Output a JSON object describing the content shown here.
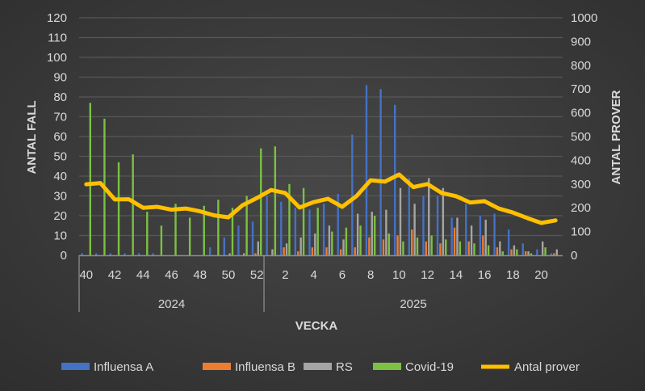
{
  "chart_data": {
    "type": "bar+line",
    "xlabel": "VECKA",
    "ylabel": "ANTAL FALL",
    "y2label": "ANTAL PROVER",
    "ylim": [
      0,
      120
    ],
    "y2lim": [
      0,
      1000
    ],
    "yticks": [
      "0",
      "10",
      "20",
      "30",
      "40",
      "50",
      "60",
      "70",
      "80",
      "90",
      "100",
      "110",
      "120"
    ],
    "y2ticks": [
      "0",
      "100",
      "200",
      "300",
      "400",
      "500",
      "600",
      "700",
      "800",
      "900",
      "1000"
    ],
    "grid": true,
    "legend": "bottom",
    "groups": [
      {
        "label": "2024",
        "weeks": [
          40,
          41,
          42,
          43,
          44,
          45,
          46,
          47,
          48,
          49,
          50,
          51,
          52
        ]
      },
      {
        "label": "2025",
        "weeks": [
          1,
          2,
          3,
          4,
          5,
          6,
          7,
          8,
          9,
          10,
          11,
          12,
          13,
          14,
          15,
          16,
          17,
          18,
          19,
          20,
          21
        ]
      }
    ],
    "xtick_labels": [
      "40",
      "42",
      "44",
      "46",
      "48",
      "50",
      "52",
      "2",
      "4",
      "6",
      "8",
      "10",
      "12",
      "14",
      "16",
      "18",
      "20"
    ],
    "series": [
      {
        "name": "Influensa A",
        "kind": "bar",
        "axis": "left",
        "color": "#4472C4",
        "values": [
          1,
          1,
          1,
          1,
          1,
          1,
          0,
          0,
          0,
          4,
          9,
          15,
          17,
          30,
          27,
          24,
          23,
          26,
          31,
          61,
          86,
          84,
          76,
          39,
          30,
          30,
          19,
          26,
          20,
          21,
          13,
          6,
          3,
          1
        ]
      },
      {
        "name": "Influensa B",
        "kind": "bar",
        "axis": "left",
        "color": "#ED7D31",
        "values": [
          0,
          0,
          0,
          0,
          0,
          0,
          0,
          0,
          0,
          0,
          0,
          0,
          1,
          0,
          4,
          2,
          4,
          4,
          3,
          4,
          9,
          8,
          10,
          13,
          7,
          6,
          14,
          7,
          10,
          4,
          3,
          2,
          0,
          1
        ]
      },
      {
        "name": "RS",
        "kind": "bar",
        "axis": "left",
        "color": "#A5A5A5",
        "values": [
          0,
          0,
          0,
          0,
          0,
          0,
          0,
          0,
          0,
          0,
          1,
          1,
          7,
          3,
          6,
          9,
          11,
          15,
          8,
          21,
          22,
          23,
          34,
          26,
          39,
          34,
          19,
          15,
          18,
          7,
          5,
          2,
          7,
          3
        ]
      },
      {
        "name": "Covid-19",
        "kind": "bar",
        "axis": "left",
        "color": "#7CC142",
        "values": [
          77,
          69,
          47,
          51,
          22,
          15,
          26,
          19,
          25,
          28,
          24,
          30,
          54,
          55,
          36,
          34,
          24,
          12,
          14,
          15,
          20,
          11,
          7,
          9,
          10,
          8,
          7,
          6,
          5,
          2,
          3,
          1,
          4,
          0
        ]
      },
      {
        "name": "Antal prover",
        "kind": "line",
        "axis": "right",
        "color": "#FFC000",
        "values": [
          299,
          304,
          235,
          236,
          200,
          204,
          192,
          197,
          185,
          168,
          160,
          211,
          241,
          275,
          262,
          201,
          224,
          238,
          204,
          249,
          316,
          310,
          340,
          287,
          300,
          262,
          249,
          222,
          228,
          197,
          180,
          157,
          136,
          147
        ]
      }
    ]
  }
}
